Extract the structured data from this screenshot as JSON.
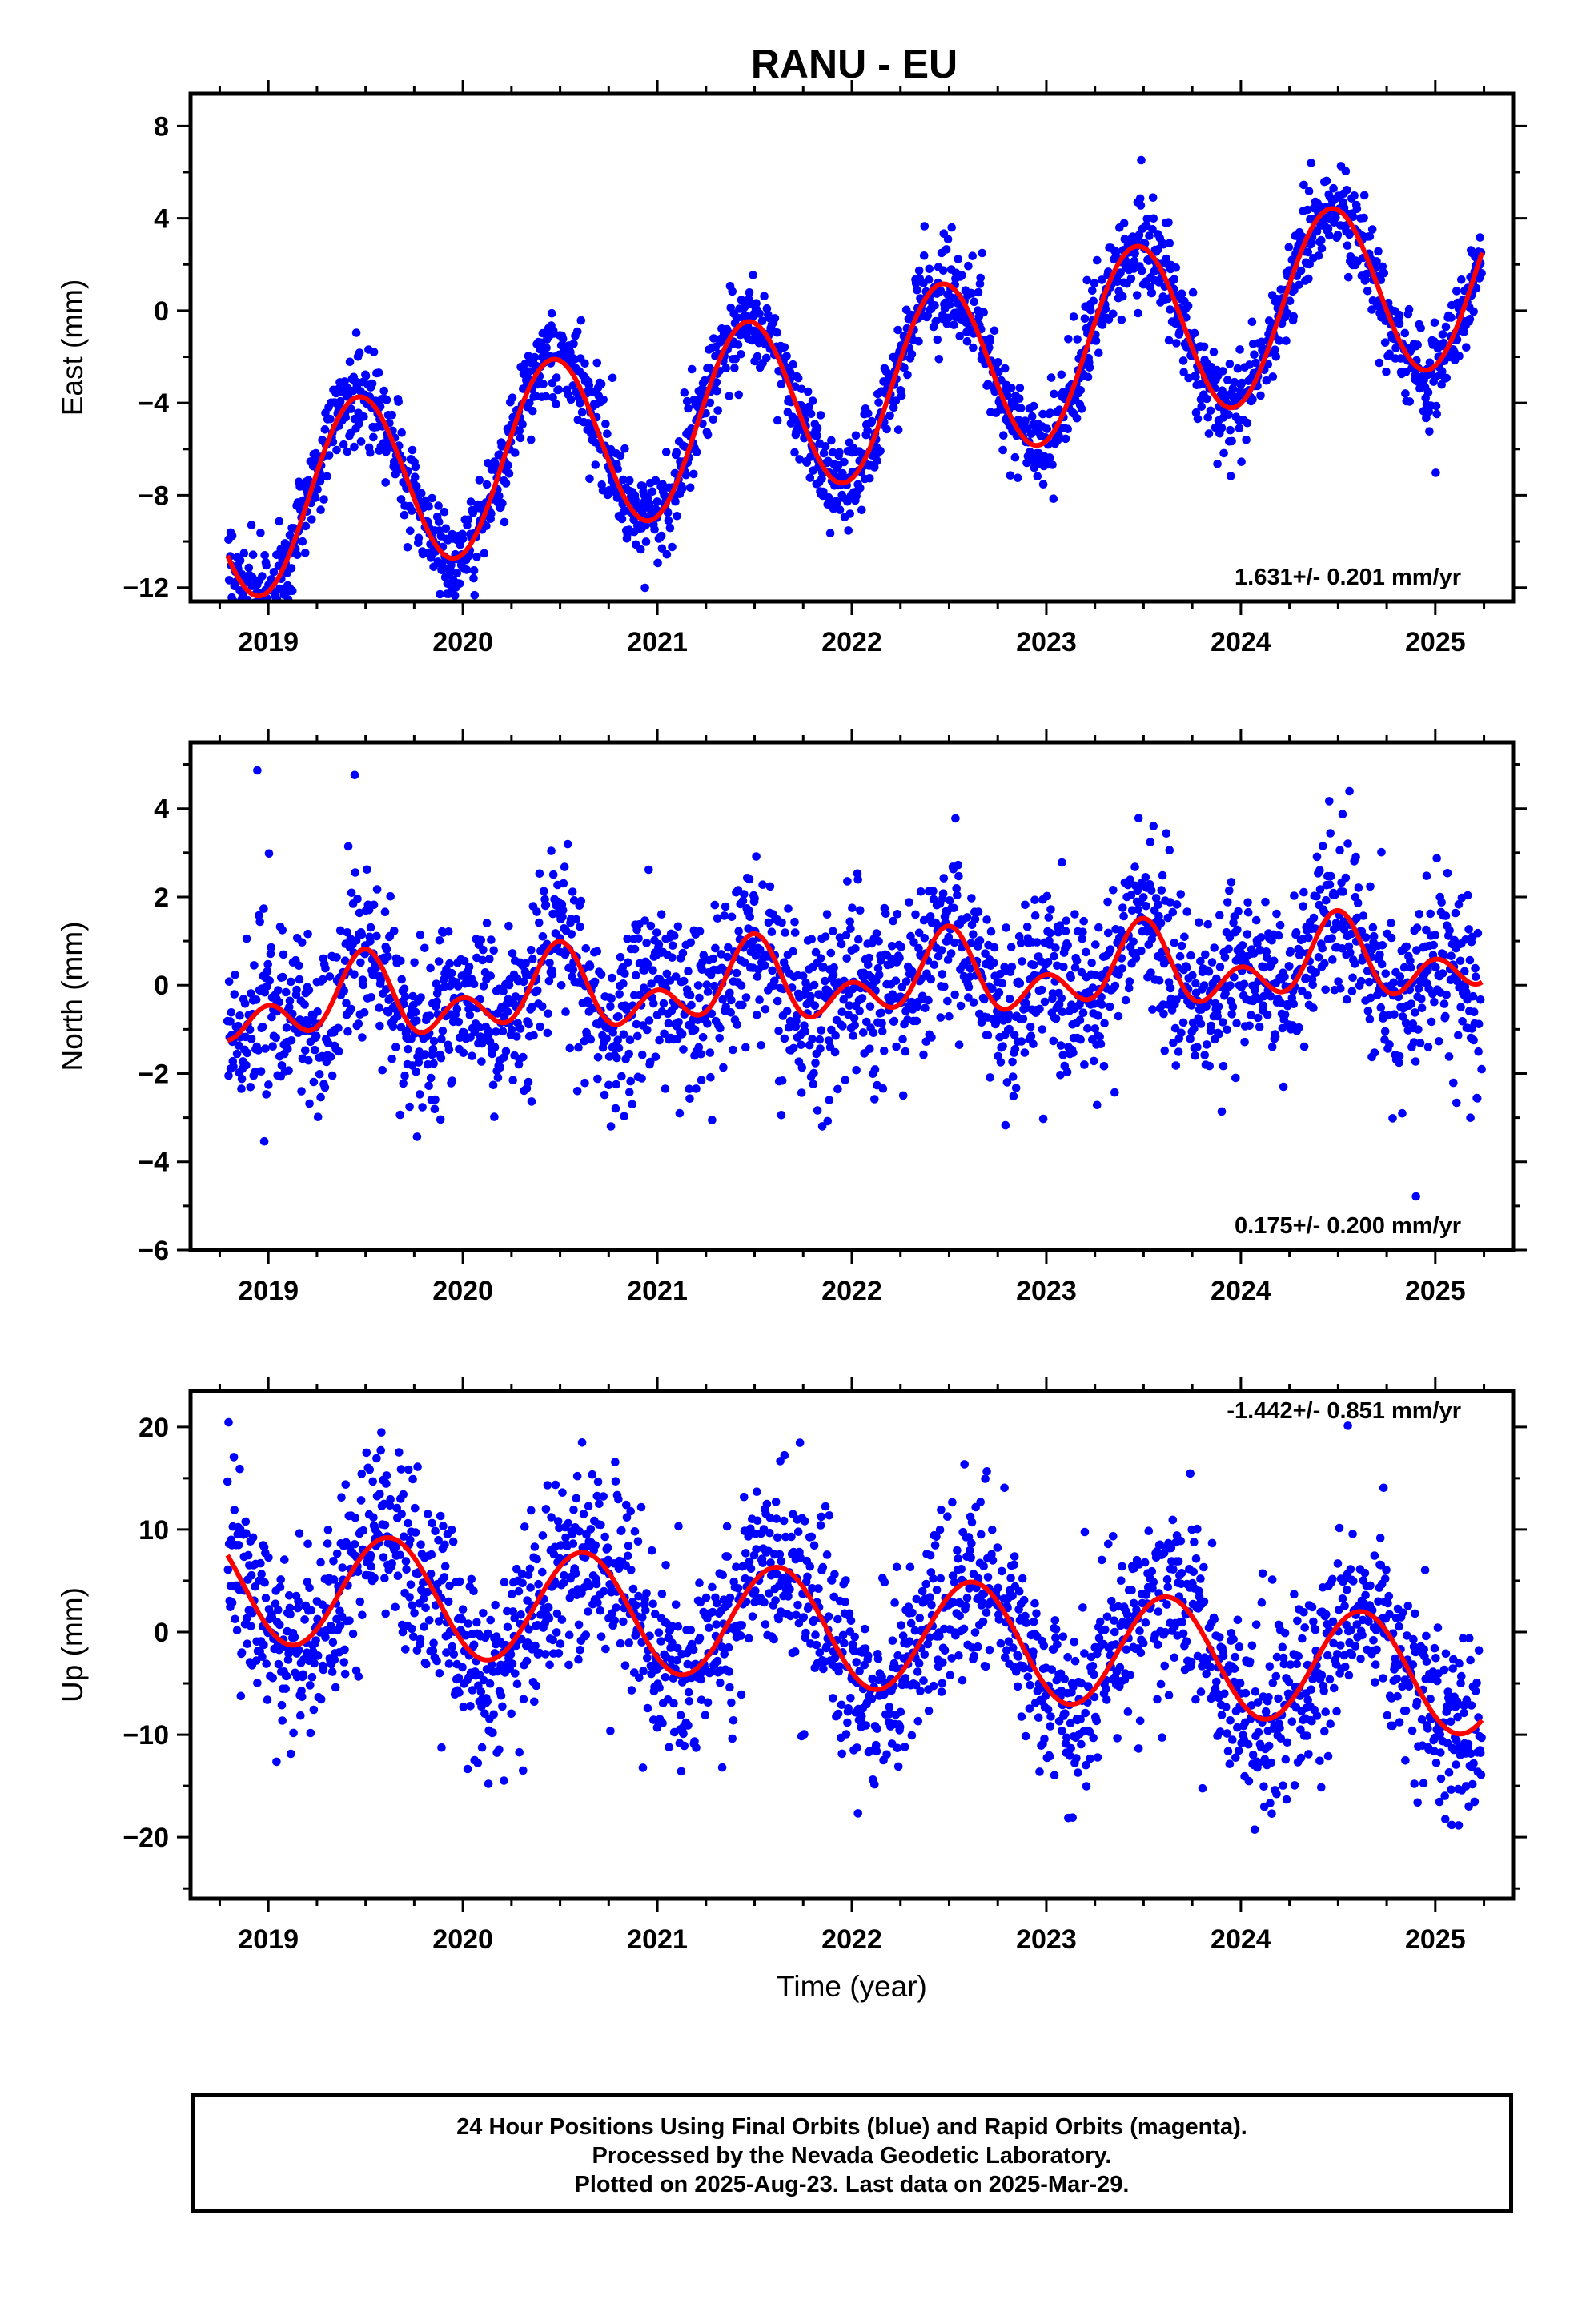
{
  "title": "RANU - EU",
  "footer": {
    "line1": "24 Hour Positions Using Final Orbits (blue) and Rapid Orbits (magenta).",
    "line2": "Processed by the Nevada Geodetic Laboratory.",
    "line3": "Plotted on 2025-Aug-23. Last data on 2025-Mar-29."
  },
  "colors": {
    "data_points": "#0000ff",
    "model_fit": "#ff0000"
  },
  "chart_data": [
    {
      "type": "scatter",
      "title": "RANU - EU",
      "ylabel": "East (mm)",
      "xlabel": "",
      "xlim": [
        2018.6,
        2025.4
      ],
      "ylim": [
        -12.6,
        9.4
      ],
      "x_ticks": [
        "2019",
        "2020",
        "2021",
        "2022",
        "2023",
        "2024",
        "2025"
      ],
      "x_tick_values": [
        2019,
        2020,
        2021,
        2022,
        2023,
        2024,
        2025
      ],
      "y_ticks": [
        -12,
        -8,
        -4,
        0,
        4,
        8
      ],
      "rate_label": "1.631+/- 0.201 mm/yr",
      "fit": {
        "anchor_t": 2018.75,
        "anchor_v": -8.8,
        "slope": 1.631,
        "annual_amp": 3.9,
        "annual_peak": 2018.46,
        "semiannual_amp": 0.0,
        "semiannual_peak": 0.0
      },
      "scatter": {
        "noise": 1.0,
        "first": 2018.79,
        "last": 2025.24
      },
      "series": [
        {
          "role": "points",
          "color": "#0000ff"
        },
        {
          "role": "fit",
          "color": "#ff0000"
        }
      ]
    },
    {
      "type": "scatter",
      "ylabel": "North (mm)",
      "xlabel": "",
      "xlim": [
        2018.6,
        2025.4
      ],
      "ylim": [
        -6.0,
        5.5
      ],
      "x_ticks": [
        "2019",
        "2020",
        "2021",
        "2022",
        "2023",
        "2024",
        "2025"
      ],
      "x_tick_values": [
        2019,
        2020,
        2021,
        2022,
        2023,
        2024,
        2025
      ],
      "y_ticks": [
        -6,
        -4,
        -2,
        0,
        2,
        4
      ],
      "rate_label": "0.175+/- 0.200 mm/yr",
      "fit": {
        "anchor_t": 2018.8,
        "anchor_v": -0.5,
        "slope": 0.175,
        "annual_amp": 0.6,
        "annual_peak": 2018.48,
        "semiannual_amp": 0.6,
        "semiannual_peak": 2018.5
      },
      "scatter": {
        "noise": 0.95,
        "first": 2018.79,
        "last": 2025.24
      },
      "series": [
        {
          "role": "points",
          "color": "#0000ff"
        },
        {
          "role": "fit",
          "color": "#ff0000"
        }
      ]
    },
    {
      "type": "scatter",
      "ylabel": "Up (mm)",
      "xlabel": "Time (year)",
      "xlim": [
        2018.6,
        2025.4
      ],
      "ylim": [
        -26.0,
        23.5
      ],
      "x_ticks": [
        "2019",
        "2020",
        "2021",
        "2022",
        "2023",
        "2024",
        "2025"
      ],
      "x_tick_values": [
        2019,
        2020,
        2021,
        2022,
        2023,
        2024,
        2025
      ],
      "y_ticks": [
        -20,
        -10,
        0,
        10,
        20
      ],
      "rate_label": "-1.442+/- 0.851 mm/yr",
      "fit": {
        "anchor_t": 2018.79,
        "anchor_v": 4.8,
        "slope": -1.442,
        "annual_amp": 5.6,
        "annual_peak": 2018.62,
        "semiannual_amp": 0.0,
        "semiannual_peak": 0.0
      },
      "scatter": {
        "noise": 4.3,
        "first": 2018.79,
        "last": 2025.24
      },
      "series": [
        {
          "role": "points",
          "color": "#0000ff"
        },
        {
          "role": "fit",
          "color": "#ff0000"
        }
      ]
    }
  ]
}
